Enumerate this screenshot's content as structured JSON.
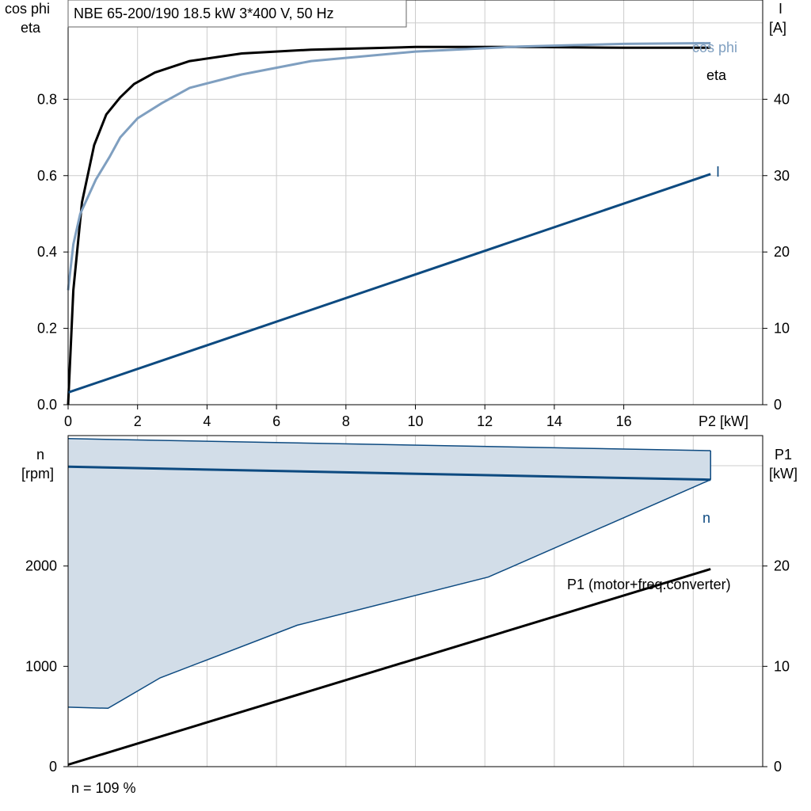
{
  "colors": {
    "eta": "#000000",
    "cos_phi": "#7f9fc0",
    "current": "#0d4a80",
    "speed": "#0d4a80",
    "range_fill": "#d2dde8",
    "p1": "#000000",
    "grid": "#cccccc"
  },
  "chart_data": [
    {
      "type": "line",
      "title": "NBE 65-200/190   18.5 kW   3*400 V, 50 Hz",
      "xlabel": "P2 [kW]",
      "ylabel_left": [
        "cos phi",
        "eta"
      ],
      "ylabel_right": [
        "I",
        "[A]"
      ],
      "xlim": [
        0,
        20
      ],
      "ylim_left": [
        0,
        1.06
      ],
      "ylim_right": [
        0,
        53
      ],
      "x_ticks": [
        "0",
        "2",
        "4",
        "6",
        "8",
        "10",
        "12",
        "14",
        "16"
      ],
      "y_ticks_left": [
        "0.0",
        "0.2",
        "0.4",
        "0.6",
        "0.8"
      ],
      "y_ticks_right": [
        "0",
        "10",
        "20",
        "30",
        "40"
      ],
      "grid": true,
      "series": [
        {
          "name": "eta",
          "axis": "left",
          "x": [
            0,
            0.15,
            0.4,
            0.75,
            1.1,
            1.5,
            1.9,
            2.5,
            3.5,
            5,
            7,
            10,
            13,
            16,
            18.5
          ],
          "y": [
            0.0,
            0.3,
            0.53,
            0.68,
            0.76,
            0.805,
            0.84,
            0.87,
            0.9,
            0.92,
            0.93,
            0.937,
            0.937,
            0.935,
            0.935
          ]
        },
        {
          "name": "cos phi",
          "axis": "left",
          "x": [
            0,
            0.15,
            0.35,
            0.8,
            1.2,
            1.5,
            2,
            2.7,
            3.5,
            5,
            7,
            10,
            13,
            16,
            18.5
          ],
          "y": [
            0.3,
            0.42,
            0.5,
            0.59,
            0.65,
            0.7,
            0.75,
            0.79,
            0.83,
            0.865,
            0.9,
            0.925,
            0.938,
            0.945,
            0.947
          ]
        },
        {
          "name": "I",
          "axis": "right",
          "x": [
            0,
            18.5
          ],
          "y": [
            1.6,
            30.2
          ]
        }
      ]
    },
    {
      "type": "area",
      "ylabel_left": [
        "n",
        "[rpm]"
      ],
      "ylabel_right": [
        "P1",
        "[kW]"
      ],
      "xlim": [
        0,
        20
      ],
      "ylim_left": [
        0,
        3300
      ],
      "ylim_right": [
        0,
        33
      ],
      "y_ticks_left": [
        "0",
        "1000",
        "2000"
      ],
      "y_ticks_right": [
        "0",
        "10",
        "20"
      ],
      "grid": true,
      "operating_range": {
        "upper_x": [
          0,
          18.5
        ],
        "upper_y": [
          3270,
          3150
        ],
        "lower_x": [
          0,
          1.15,
          2.65,
          6.6,
          12.1,
          18.5
        ],
        "lower_y": [
          593,
          582,
          885,
          1410,
          1890,
          2860
        ],
        "right_edge_x": 18.5
      },
      "series": [
        {
          "name": "n",
          "axis": "left",
          "x": [
            0,
            18.5
          ],
          "y": [
            2990,
            2860
          ]
        },
        {
          "name": "P1 (motor+freq.converter)",
          "axis": "right",
          "x": [
            0,
            18.5
          ],
          "y": [
            0.2,
            19.7
          ]
        }
      ],
      "footnote": "n = 109 %"
    }
  ]
}
